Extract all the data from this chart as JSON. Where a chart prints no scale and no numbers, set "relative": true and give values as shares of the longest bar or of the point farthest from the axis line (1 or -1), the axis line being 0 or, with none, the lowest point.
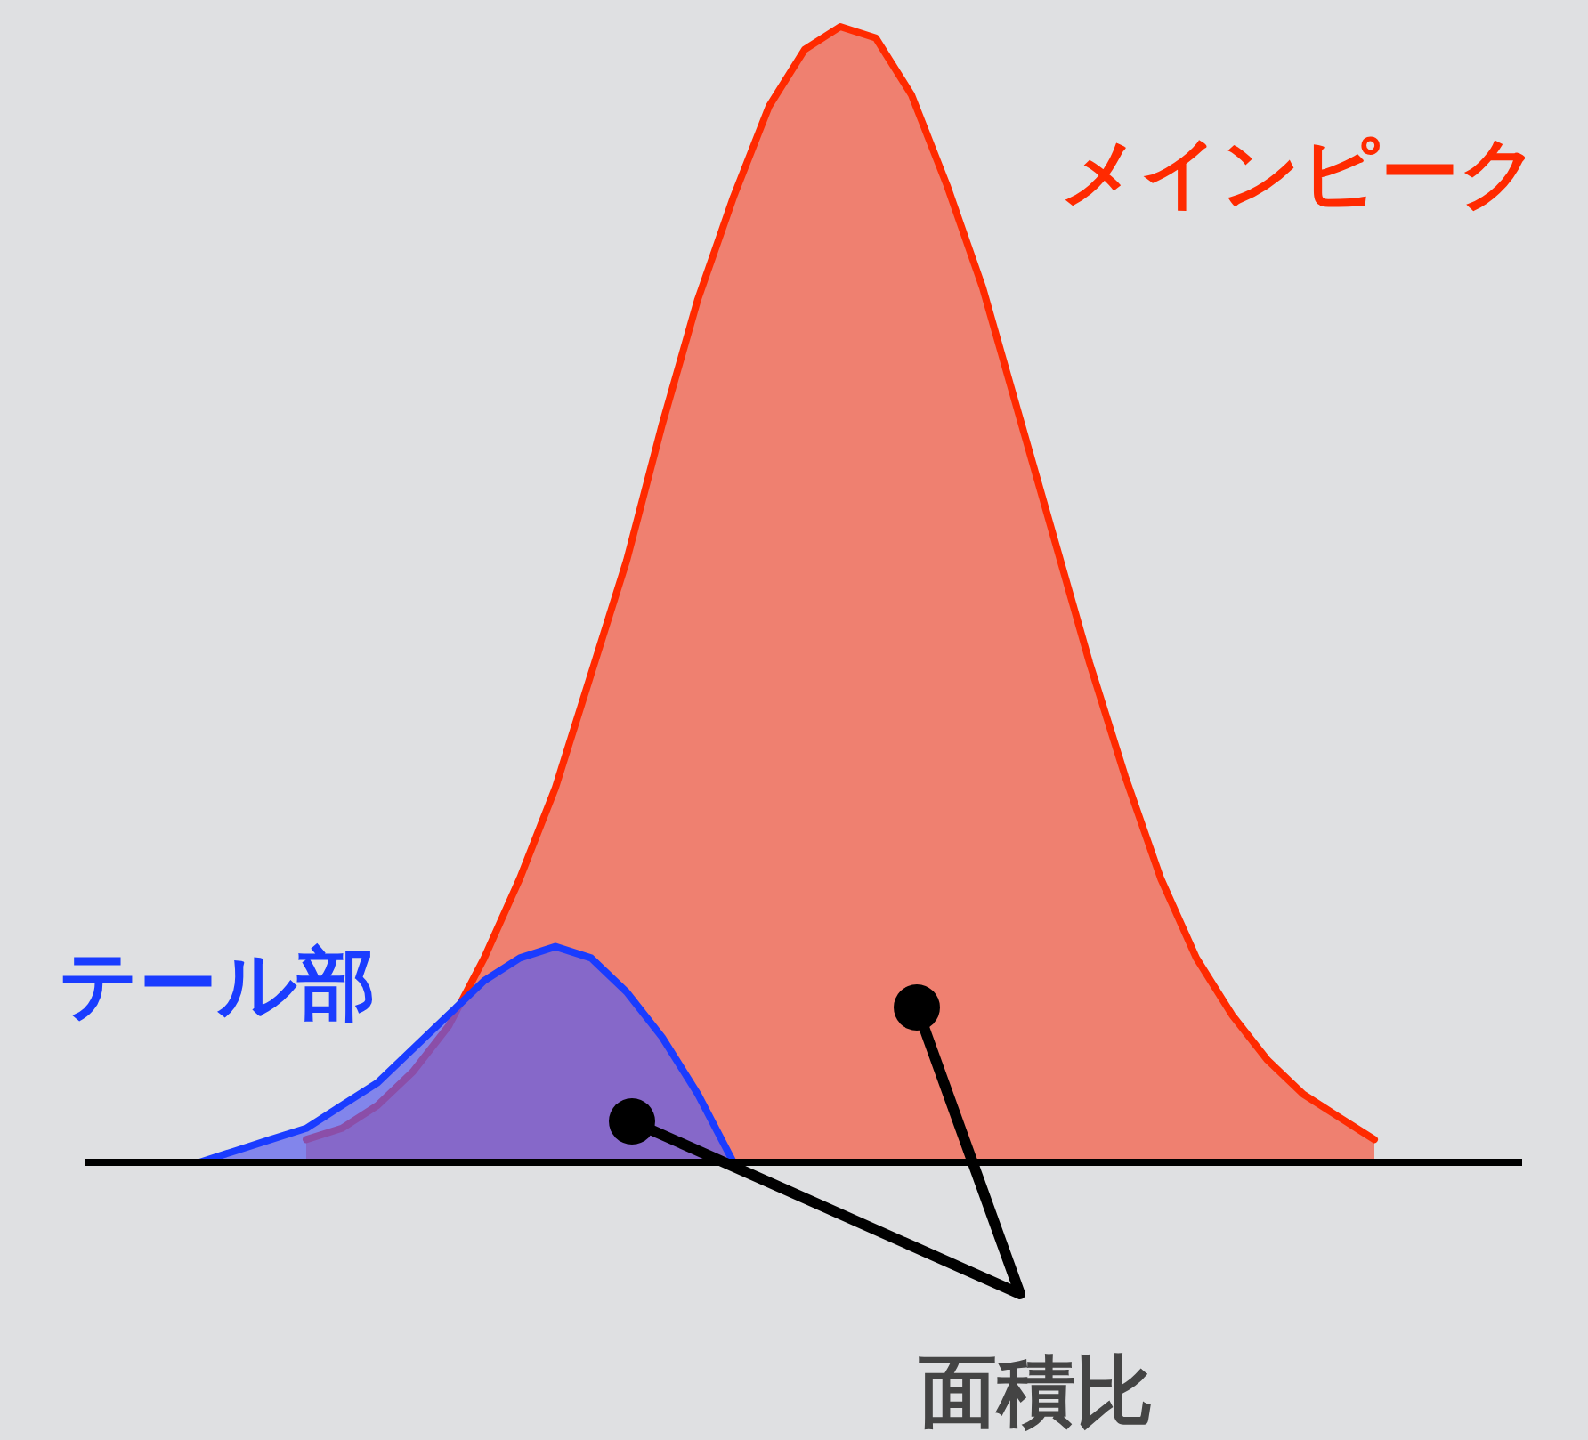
{
  "chart_data": {
    "type": "area",
    "relative": true,
    "legend": false,
    "categories": [
      null,
      null,
      null,
      null,
      null,
      null,
      null,
      null,
      null,
      null,
      null,
      null,
      null,
      null,
      null,
      null,
      null,
      null,
      null,
      null,
      null,
      null,
      null,
      null,
      null,
      null,
      null,
      null,
      null,
      null,
      null,
      null,
      null,
      null,
      null
    ],
    "series": [
      {
        "name": "メインピーク",
        "color": "#ff2a00",
        "values": [
          null,
          null,
          null,
          0.02,
          0.03,
          0.05,
          0.08,
          0.12,
          0.18,
          0.25,
          0.33,
          0.43,
          0.53,
          0.65,
          0.76,
          0.85,
          0.93,
          0.98,
          1.0,
          0.99,
          0.94,
          0.86,
          0.77,
          0.66,
          0.55,
          0.44,
          0.34,
          0.25,
          0.18,
          0.13,
          0.09,
          0.06,
          0.04,
          0.02,
          null
        ]
      },
      {
        "name": "テール部",
        "color": "#1a3cff",
        "values": [
          0,
          0.01,
          0.02,
          0.03,
          0.05,
          0.07,
          0.1,
          0.13,
          0.16,
          0.18,
          0.19,
          0.18,
          0.15,
          0.11,
          0.06,
          0,
          null,
          null,
          null,
          null,
          null,
          null,
          null,
          null,
          null,
          null,
          null,
          null,
          null,
          null,
          null,
          null,
          null,
          null,
          null
        ]
      }
    ],
    "annotations": [
      "面積比"
    ]
  }
}
